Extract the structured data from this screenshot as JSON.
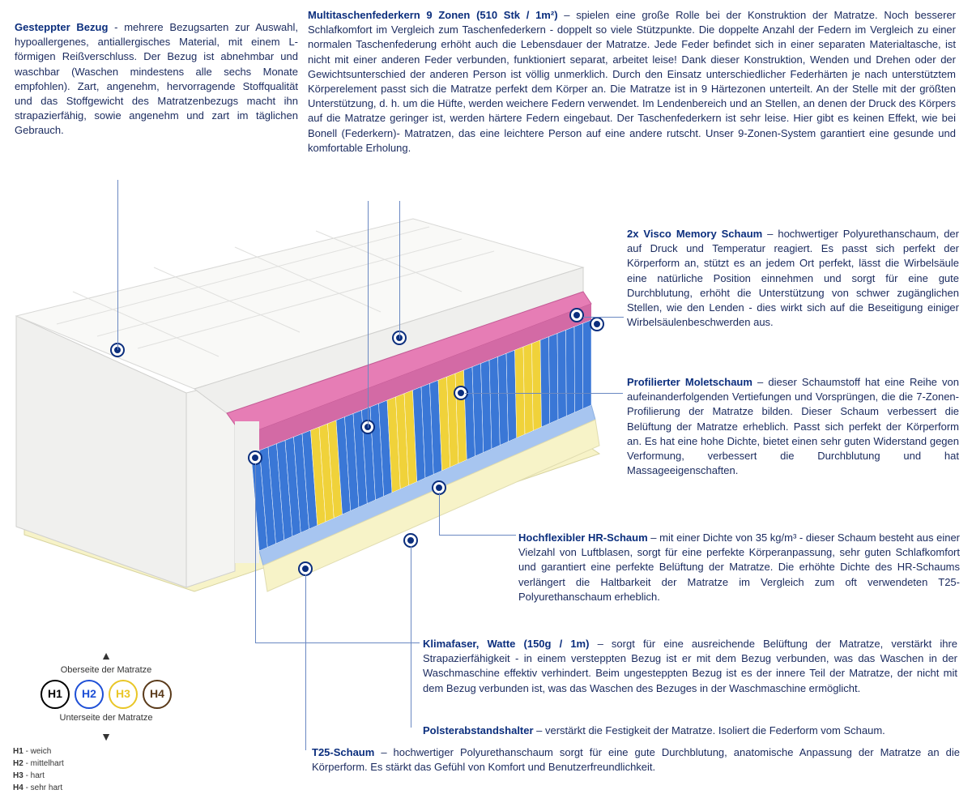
{
  "topLeft": {
    "title": "Gesteppter Bezug",
    "text": " - mehrere Bezugsarten zur Auswahl, hypoallergenes, antiallergisches Material, mit einem L-förmigen Reißverschluss. Der Bezug ist abnehmbar und waschbar (Waschen mindestens alle sechs Monate empfohlen). Zart, angenehm, hervorragende Stoffqualität und das Stoffgewicht des Matratzenbezugs macht ihn strapazierfähig, sowie angenehm und zart im täglichen Gebrauch."
  },
  "topRight": {
    "title": "Multitaschenfederkern 9 Zonen (510 Stk / 1m²)",
    "text": " – spielen eine große Rolle bei der Konstruktion der Matratze. Noch besserer Schlafkomfort im Vergleich zum Taschenfederkern - doppelt so viele Stützpunkte. Die doppelte Anzahl der Federn im Vergleich zu einer normalen Taschenfederung erhöht auch die Lebensdauer der Matratze. Jede Feder befindet sich in einer separaten Materialtasche, ist nicht mit einer anderen Feder verbunden, funktioniert separat, arbeitet leise! Dank dieser Konstruktion, Wenden und Drehen oder der Gewichtsunterschied der anderen Person ist völlig unmerklich. Durch den Einsatz unterschiedlicher Federhärten je nach unterstütztem Körperelement passt sich die Matratze perfekt dem Körper an. Die Matratze ist in 9 Härtezonen unterteilt. An der Stelle mit der größten Unterstützung, d. h. um die Hüfte, werden weichere Federn verwendet. Im Lendenbereich und an Stellen, an denen der Druck des Körpers auf die Matratze geringer ist, werden härtere Federn eingebaut. Der Taschenfederkern ist sehr leise. Hier gibt es keinen Effekt, wie bei Bonell (Federkern)- Matratzen, das eine leichtere Person auf eine andere rutscht. Unser 9-Zonen-System garantiert eine gesunde und komfortable Erholung."
  },
  "r1": {
    "title": "2x Visco Memory Schaum",
    "text": " – hochwertiger Polyurethanschaum, der auf Druck und Temperatur reagiert. Es passt sich perfekt der Körperform an, stützt es an jedem Ort perfekt, lässt die Wirbelsäule eine natürliche Position einnehmen und sorgt für eine gute Durchblutung, erhöht die Unterstützung von schwer zugänglichen Stellen, wie den Lenden - dies wirkt sich auf die Beseitigung einiger Wirbelsäulenbeschwerden aus."
  },
  "r2": {
    "title": "Profilierter Moletschaum",
    "text": " – dieser Schaumstoff hat eine Reihe von aufeinanderfolgenden Vertiefungen und Vorsprüngen, die die 7-Zonen-Profilierung der Matratze bilden. Dieser Schaum verbessert die Belüftung der Matratze erheblich. Passt sich perfekt der Körperform an. Es hat eine hohe Dichte, bietet einen sehr guten Widerstand gegen Verformung, verbessert die Durchblutung und hat Massageeigenschaften."
  },
  "m1": {
    "title": "Hochflexibler HR-Schaum",
    "text": " – mit einer Dichte von 35 kg/m³ - dieser Schaum besteht aus einer Vielzahl von Luftblasen, sorgt für eine perfekte Körperanpassung, sehr guten Schlafkomfort und garantiert eine perfekte Belüftung der Matratze. Die erhöhte Dichte des HR-Schaums verlängert die Haltbarkeit der Matratze im Vergleich zum oft verwendeten T25-Polyurethanschaum erheblich."
  },
  "b1": {
    "title": "Klimafaser, Watte (150g / 1m)",
    "text": " – sorgt für eine ausreichende Belüftung der Matratze, verstärkt ihre Strapazierfähigkeit - in einem versteppten Bezug ist er mit dem Bezug verbunden, was das Waschen in der Waschmaschine effektiv verhindert. Beim ungesteppten Bezug ist es der innere Teil der Matratze, der nicht mit dem Bezug verbunden ist, was das Waschen des Bezuges in der Waschmaschine ermöglicht."
  },
  "b2": {
    "title": "Polsterabstandshalter",
    "text": " – verstärkt die Festigkeit der Matratze. Isoliert die Federform vom Schaum."
  },
  "b3": {
    "title": "T25-Schaum",
    "text": " – hochwertiger Polyurethanschaum sorgt für eine gute Durchblutung, anatomische Anpassung der Matratze an die Körperform. Es stärkt das Gefühl von Komfort und Benutzerfreundlichkeit."
  },
  "legend": {
    "top": "Oberseite der Matratze",
    "bottom": "Unterseite der Matratze",
    "items": [
      {
        "label": "H1",
        "desc": "weich",
        "color": "#000000"
      },
      {
        "label": "H2",
        "desc": "mittelhart",
        "color": "#1e4fd6"
      },
      {
        "label": "H3",
        "desc": "hart",
        "color": "#e9c626"
      },
      {
        "label": "H4",
        "desc": "sehr hart",
        "color": "#5a3a1a"
      }
    ]
  },
  "colors": {
    "cover": "#f4f4f2",
    "pink": "#e67db5",
    "yellowFoam": "#f5f3d8",
    "blueFoam": "#a7c5f0",
    "springBlue": "#3a77d6",
    "springYellow": "#f0d23a",
    "bottomYellow": "#f7f3c8",
    "accent": "#0b2e7d"
  }
}
